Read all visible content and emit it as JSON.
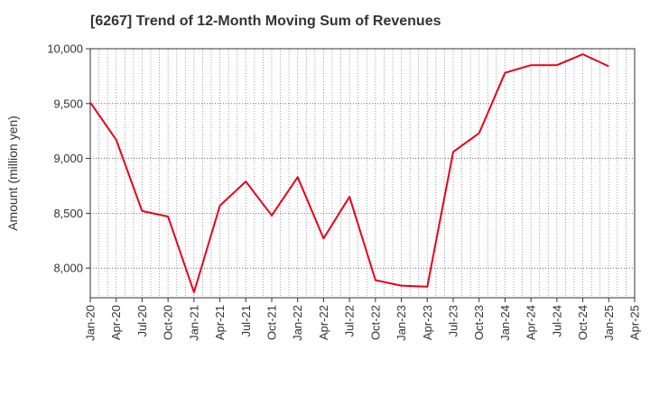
{
  "chart_data": {
    "type": "line",
    "title": "[6267]  Trend of 12-Month Moving Sum of Revenues",
    "xlabel": "",
    "ylabel": "Amount (million yen)",
    "ylim": [
      7730,
      10000
    ],
    "yticks": [
      8000,
      8500,
      9000,
      9500,
      10000
    ],
    "ytick_labels": [
      "8,000",
      "8,500",
      "9,000",
      "9,500",
      "10,000"
    ],
    "xtick_labels": [
      "Jan-20",
      "Apr-20",
      "Jul-20",
      "Oct-20",
      "Jan-21",
      "Apr-21",
      "Jul-21",
      "Oct-21",
      "Jan-22",
      "Apr-22",
      "Jul-22",
      "Oct-22",
      "Jan-23",
      "Apr-23",
      "Jul-23",
      "Oct-23",
      "Jan-24",
      "Apr-24",
      "Jul-24",
      "Oct-24",
      "Jan-25",
      "Apr-25"
    ],
    "grid": true,
    "line_color": "#e8001c",
    "series": [
      {
        "x": [
          "Jan-20",
          "Apr-20",
          "Jul-20",
          "Oct-20",
          "Jan-21",
          "Apr-21",
          "Jul-21",
          "Oct-21",
          "Jan-22",
          "Apr-22",
          "Jul-22",
          "Oct-22",
          "Jan-23",
          "Apr-23",
          "Jul-23",
          "Oct-23",
          "Jan-24",
          "Apr-24",
          "Jul-24",
          "Oct-24",
          "Jan-25"
        ],
        "values": [
          9510,
          9170,
          8520,
          8470,
          7780,
          8570,
          8790,
          8480,
          8830,
          8270,
          8650,
          7890,
          7840,
          7830,
          9060,
          9230,
          9780,
          9850,
          9850,
          9950,
          9840
        ]
      }
    ]
  }
}
